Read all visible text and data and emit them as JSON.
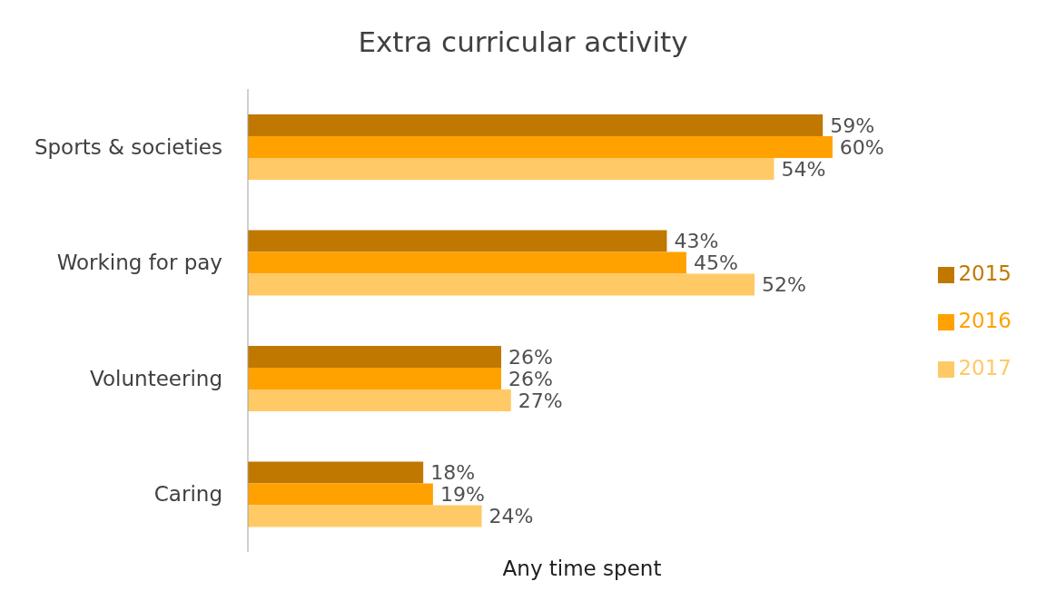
{
  "chart_data": {
    "type": "bar",
    "orientation": "horizontal",
    "title": "Extra curricular activity",
    "xlabel": "Any time spent",
    "categories": [
      "Sports & societies",
      "Working for pay",
      "Volunteering",
      "Caring"
    ],
    "series": [
      {
        "name": "2015",
        "color": "#c07800",
        "values": [
          59,
          43,
          26,
          18
        ],
        "value_labels": [
          "59%",
          "43%",
          "26%",
          "18%"
        ]
      },
      {
        "name": "2016",
        "color": "#ffa200",
        "values": [
          60,
          45,
          26,
          19
        ],
        "value_labels": [
          "60%",
          "45%",
          "26%",
          "19%"
        ]
      },
      {
        "name": "2017",
        "color": "#ffc966",
        "values": [
          54,
          52,
          27,
          24
        ],
        "value_labels": [
          "54%",
          "52%",
          "27%",
          "24%"
        ]
      }
    ],
    "legend": "right",
    "grid": false
  }
}
